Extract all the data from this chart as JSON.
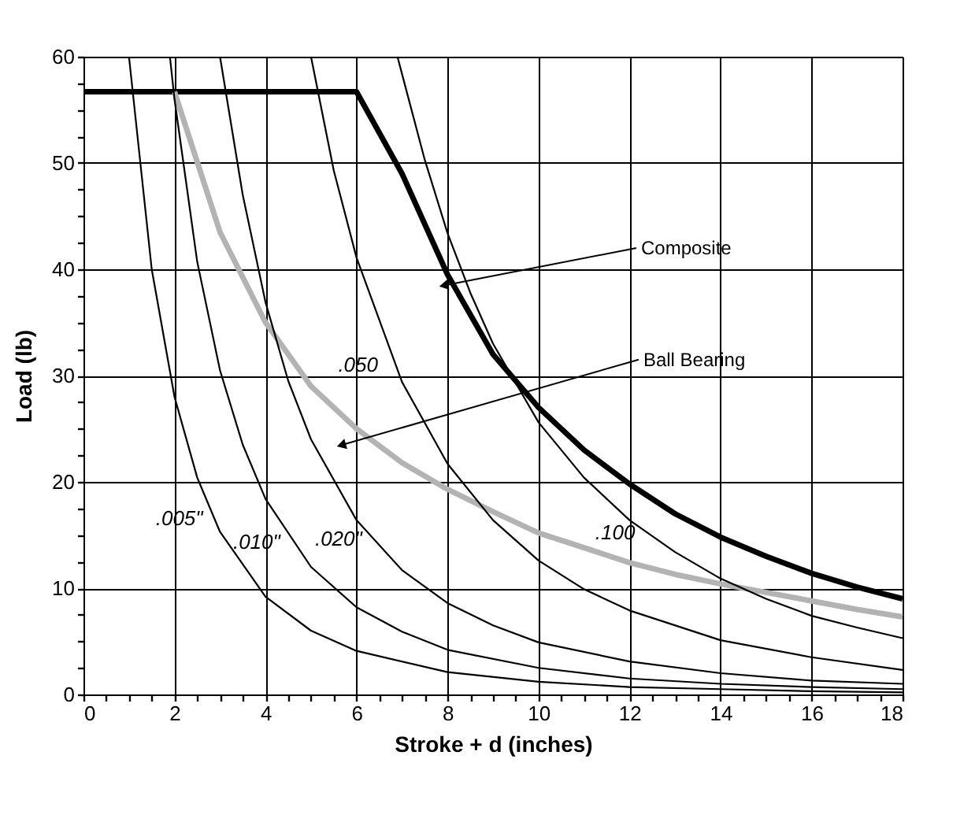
{
  "chart_data": {
    "type": "line",
    "xlabel": "Stroke + d (inches)",
    "ylabel": "Load (lb)",
    "xlim": [
      0,
      18
    ],
    "ylim": [
      0,
      60
    ],
    "xticks": [
      0,
      {
        "value": 0.5,
        "label": null
      },
      {
        "value": 1,
        "label": null
      },
      {
        "value": 1.5,
        "label": null
      },
      2,
      {
        "value": 2.5,
        "label": null
      },
      {
        "value": 3,
        "label": null
      },
      {
        "value": 3.5,
        "label": null
      },
      4,
      {
        "value": 4.5,
        "label": null
      },
      {
        "value": 5,
        "label": null
      },
      {
        "value": 5.5,
        "label": null
      },
      6,
      {
        "value": 6.5,
        "label": null
      },
      {
        "value": 7,
        "label": null
      },
      {
        "value": 7.5,
        "label": null
      },
      8,
      {
        "value": 8.5,
        "label": null
      },
      {
        "value": 9,
        "label": null
      },
      {
        "value": 9.5,
        "label": null
      },
      10,
      {
        "value": 10.5,
        "label": null
      },
      {
        "value": 11,
        "label": null
      },
      {
        "value": 11.5,
        "label": null
      },
      12,
      {
        "value": 12.5,
        "label": null
      },
      {
        "value": 13,
        "label": null
      },
      {
        "value": 13.5,
        "label": null
      },
      14,
      {
        "value": 14.5,
        "label": null
      },
      {
        "value": 15,
        "label": null
      },
      {
        "value": 15.5,
        "label": null
      },
      16,
      {
        "value": 16.5,
        "label": null
      },
      {
        "value": 17,
        "label": null
      },
      {
        "value": 17.5,
        "label": null
      },
      18
    ],
    "yticks": [
      0,
      {
        "value": 2.5,
        "label": null
      },
      {
        "value": 5,
        "label": null
      },
      {
        "value": 7.5,
        "label": null
      },
      10,
      {
        "value": 12.5,
        "label": null
      },
      {
        "value": 15,
        "label": null
      },
      {
        "value": 17.5,
        "label": null
      },
      20,
      {
        "value": 22.5,
        "label": null
      },
      {
        "value": 25,
        "label": null
      },
      {
        "value": 27.5,
        "label": null
      },
      30,
      {
        "value": 32.5,
        "label": null
      },
      {
        "value": 35,
        "label": null
      },
      {
        "value": 37.5,
        "label": null
      },
      40,
      {
        "value": 42.5,
        "label": null
      },
      {
        "value": 45,
        "label": null
      },
      {
        "value": 47.5,
        "label": null
      },
      50,
      {
        "value": 52.5,
        "label": null
      },
      {
        "value": 55,
        "label": null
      },
      {
        "value": 57.5,
        "label": null
      },
      60
    ],
    "grid": true,
    "marker": "none",
    "line_style": "solid",
    "series": [
      {
        "color": "#000000",
        "x": [
          0,
          6,
          7,
          8,
          9,
          10,
          11,
          12,
          13,
          14,
          15,
          16,
          17,
          18
        ],
        "values": [
          56.7,
          56.7,
          49,
          39.5,
          32,
          27,
          23,
          19.8,
          17,
          14.8,
          13,
          11.4,
          10.1,
          9.0
        ]
      },
      {
        "color": "#b3b3b3",
        "x": [
          2,
          3,
          4,
          5,
          6,
          7,
          8,
          9,
          10,
          11,
          12,
          13,
          14,
          15,
          16,
          17,
          18
        ],
        "values": [
          56.7,
          43.5,
          35,
          29,
          25,
          21.8,
          19.3,
          17.2,
          15.2,
          13.8,
          12.4,
          11.3,
          10.4,
          9.6,
          8.8,
          8.0,
          7.3
        ]
      },
      {
        "color": "#000000",
        "x": [
          1.0,
          1.5,
          2,
          2.5,
          3,
          4,
          5,
          6,
          8,
          10,
          12,
          14,
          16,
          18
        ],
        "values": [
          60,
          40,
          28,
          20.4,
          15.3,
          9.2,
          6.0,
          4.1,
          2.1,
          1.2,
          0.7,
          0.5,
          0.3,
          0.2
        ]
      },
      {
        "color": "#000000",
        "x": [
          1.9,
          2,
          2.5,
          3,
          3.5,
          4,
          5,
          6,
          7,
          8,
          10,
          12,
          14,
          16,
          18
        ],
        "values": [
          60,
          56,
          40.7,
          30.5,
          23.5,
          18.4,
          12,
          8.2,
          5.9,
          4.2,
          2.5,
          1.5,
          1.0,
          0.7,
          0.5
        ]
      },
      {
        "color": "#000000",
        "x": [
          3.0,
          3.5,
          4,
          4.5,
          5,
          6,
          7,
          8,
          9,
          10,
          12,
          14,
          16,
          18
        ],
        "values": [
          60,
          47,
          36.9,
          29.5,
          24,
          16.4,
          11.7,
          8.6,
          6.5,
          4.9,
          3.1,
          2.0,
          1.3,
          1.0
        ]
      },
      {
        "color": "#000000",
        "x": [
          5.0,
          5.5,
          6,
          7,
          8,
          9,
          10,
          11,
          12,
          14,
          16,
          18
        ],
        "values": [
          60,
          49.3,
          41.1,
          29.4,
          21.7,
          16.4,
          12.6,
          9.9,
          7.9,
          5.1,
          3.5,
          2.3
        ]
      },
      {
        "color": "#000000",
        "x": [
          6.9,
          7.5,
          8,
          8.5,
          9,
          10,
          11,
          12,
          13,
          14,
          15,
          16,
          17,
          18
        ],
        "values": [
          60,
          50.3,
          43.4,
          37.8,
          33,
          25.6,
          20.4,
          16.4,
          13.4,
          10.9,
          9.0,
          7.4,
          6.3,
          5.3
        ]
      }
    ],
    "annotations": [
      {
        "text": "Composite",
        "x": 7.95,
        "y": 38.5
      },
      {
        "text": "Ball Bearing",
        "x": 5.7,
        "y": 23.5
      },
      {
        "text": ".005\"",
        "x": 2.9,
        "y": 16.5
      },
      {
        "text": ".010\"",
        "x": 4.6,
        "y": 14.3
      },
      {
        "text": ".020\"",
        "x": 6.4,
        "y": 14.6
      },
      {
        "text": ".050",
        "x": 6.75,
        "y": 31.0
      },
      {
        "text": ".100",
        "x": 12.4,
        "y": 15.2
      }
    ]
  }
}
